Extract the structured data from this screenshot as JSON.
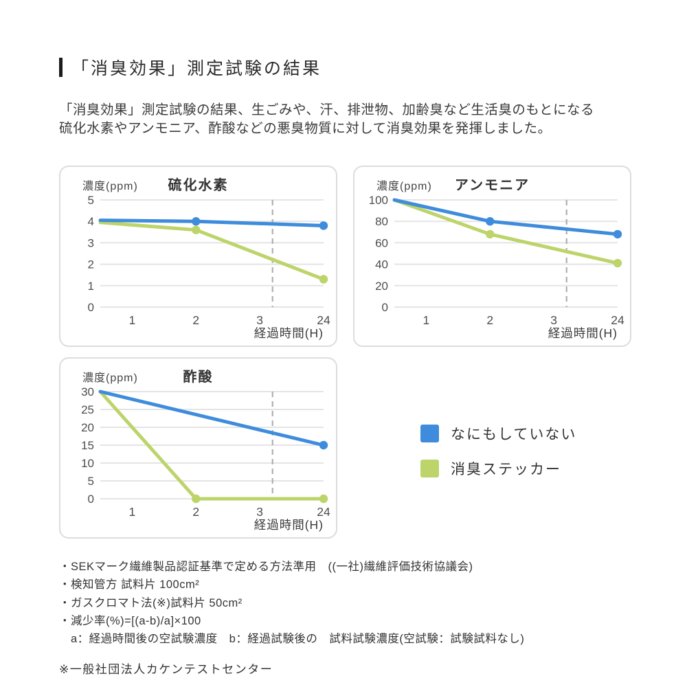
{
  "header": {
    "title": "「消臭効果」測定試験の結果",
    "description": [
      "「消臭効果」測定試験の結果、生ごみや、汗、排泄物、加齢臭など生活臭のもとになる",
      "硫化水素やアンモニア、酢酸などの悪臭物質に対して消臭効果を発揮しました。"
    ]
  },
  "colors": {
    "blue": "#3e8cdb",
    "green": "#bcd46a",
    "grid": "#e4e4e4",
    "dashed": "#aeaeae",
    "tick_text": "#4d4d4d",
    "axis_text": "#3a3a3a"
  },
  "legend": {
    "items": [
      {
        "label": "なにもしていない",
        "color_key": "blue"
      },
      {
        "label": "消臭ステッカー",
        "color_key": "green"
      }
    ]
  },
  "chart_data": [
    {
      "type": "line",
      "title": "硫化水素",
      "ylabel": "濃度(ppm)",
      "xlabel": "経過時間(H)",
      "x_tick_labels": [
        "1",
        "2",
        "3",
        "24"
      ],
      "y_ticks": [
        0,
        1,
        2,
        3,
        4,
        5
      ],
      "ylim": [
        0,
        5
      ],
      "dashed_x_index": 2.2,
      "series": [
        {
          "name": "消臭ステッカー",
          "color_key": "green",
          "points": [
            {
              "t": 0,
              "v": 3.95
            },
            {
              "t": 2,
              "v": 3.6,
              "dot": true
            },
            {
              "t": 24,
              "v": 1.3,
              "dot": true
            }
          ]
        },
        {
          "name": "なにもしていない",
          "color_key": "blue",
          "points": [
            {
              "t": 0,
              "v": 4.05
            },
            {
              "t": 2,
              "v": 4.0,
              "dot": true
            },
            {
              "t": 24,
              "v": 3.8,
              "dot": true
            }
          ]
        }
      ]
    },
    {
      "type": "line",
      "title": "アンモニア",
      "ylabel": "濃度(ppm)",
      "xlabel": "経過時間(H)",
      "x_tick_labels": [
        "1",
        "2",
        "3",
        "24"
      ],
      "y_ticks": [
        0,
        20,
        40,
        60,
        80,
        100
      ],
      "ylim": [
        0,
        100
      ],
      "dashed_x_index": 2.2,
      "series": [
        {
          "name": "消臭ステッカー",
          "color_key": "green",
          "points": [
            {
              "t": 0,
              "v": 100
            },
            {
              "t": 2,
              "v": 68,
              "dot": true
            },
            {
              "t": 24,
              "v": 41,
              "dot": true
            }
          ]
        },
        {
          "name": "なにもしていない",
          "color_key": "blue",
          "points": [
            {
              "t": 0,
              "v": 100
            },
            {
              "t": 2,
              "v": 80,
              "dot": true
            },
            {
              "t": 24,
              "v": 68,
              "dot": true
            }
          ]
        }
      ]
    },
    {
      "type": "line",
      "title": "酢酸",
      "ylabel": "濃度(ppm)",
      "xlabel": "経過時間(H)",
      "x_tick_labels": [
        "1",
        "2",
        "3",
        "24"
      ],
      "y_ticks": [
        0,
        5,
        10,
        15,
        20,
        25,
        30
      ],
      "ylim": [
        0,
        30
      ],
      "dashed_x_index": 2.2,
      "series": [
        {
          "name": "消臭ステッカー",
          "color_key": "green",
          "points": [
            {
              "t": 0,
              "v": 30
            },
            {
              "t": 2,
              "v": 0,
              "dot": true
            },
            {
              "t": 24,
              "v": 0,
              "dot": true
            }
          ]
        },
        {
          "name": "なにもしていない",
          "color_key": "blue",
          "points": [
            {
              "t": 0,
              "v": 30
            },
            {
              "t": 24,
              "v": 15,
              "dot": true
            }
          ]
        }
      ]
    }
  ],
  "footnotes": [
    "・SEKマーク繊維製品認証基準で定める方法準用　((一社)繊維評価技術協議会)",
    "・検知管方 試料片 100cm²",
    "・ガスクロマト法(※)試料片 50cm²",
    "・減少率(%)=[(a-b)/a]×100",
    "　a：経過時間後の空試験濃度　b：経過試験後の　試料試験濃度(空試験：試験試料なし)"
  ],
  "asterisk_note": "※一般社団法人カケンテストセンター"
}
